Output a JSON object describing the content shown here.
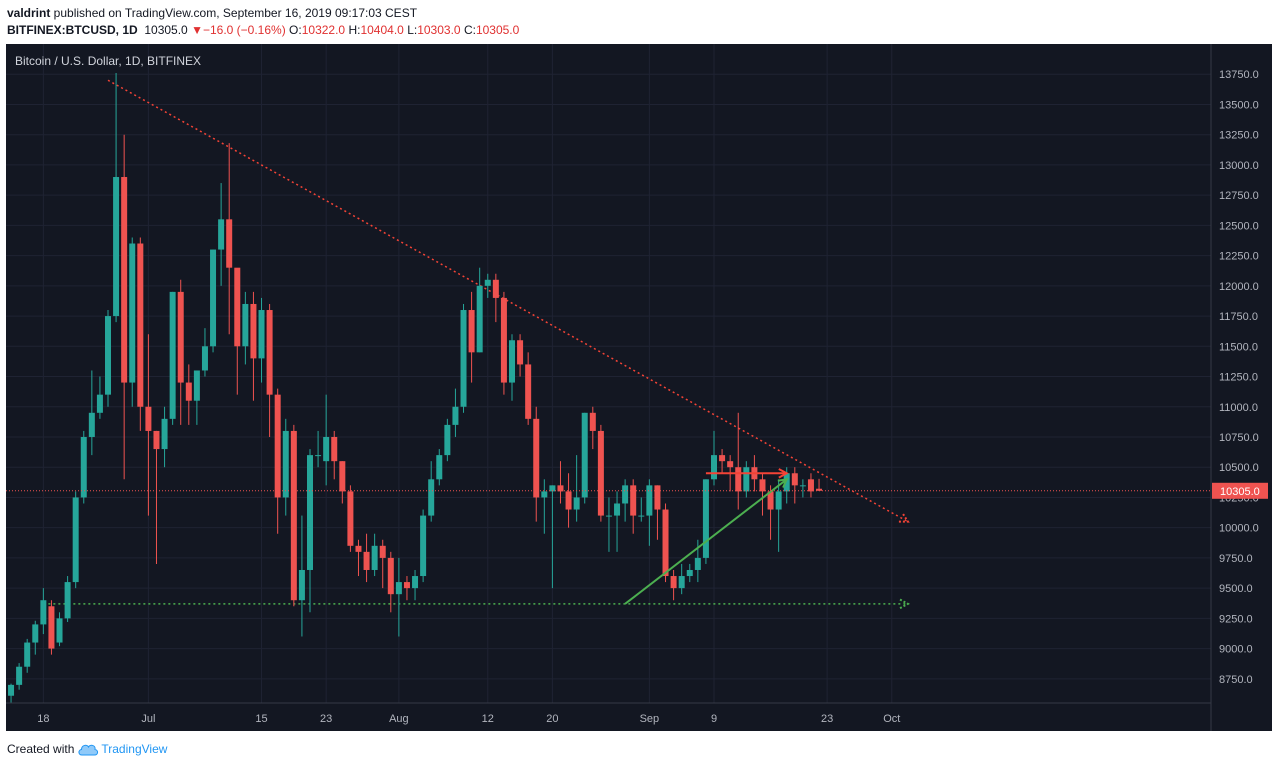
{
  "header": {
    "author": "valdrint",
    "published_text": " published on TradingView.com, September 16, 2019 09:17:03 CEST",
    "symbol": "BITFINEX:BTCUSD, 1D",
    "last": "10305.0",
    "change_arrow": "▼",
    "change": "−16.0 (−0.16%)",
    "o_label": "O:",
    "o_val": "10322.0",
    "h_label": "H:",
    "h_val": "10404.0",
    "l_label": "L:",
    "l_val": "10303.0",
    "c_label": "C:",
    "c_val": "10305.0"
  },
  "footer": {
    "created_with": "Created with",
    "brand": "TradingView",
    "icon": "tradingview-cloud-icon"
  },
  "chart_data": {
    "type": "candlestick",
    "title": "Bitcoin / U.S. Dollar, 1D, BITFINEX",
    "background": "#131722",
    "up_color": "#26a69a",
    "down_color": "#ef5350",
    "last_price": 10305.0,
    "last_price_label": "10305.0",
    "ylim": [
      8550,
      14000
    ],
    "y_ticks": [
      8750,
      9000,
      9250,
      9500,
      9750,
      10000,
      10250,
      10500,
      10750,
      11000,
      11250,
      11500,
      11750,
      12000,
      12250,
      12500,
      12750,
      13000,
      13250,
      13500,
      13750
    ],
    "y_tick_labels": [
      "8750.0",
      "9000.0",
      "9250.0",
      "9500.0",
      "9750.0",
      "10000.0",
      "10250.0",
      "10500.0",
      "10750.0",
      "11000.0",
      "11250.0",
      "11500.0",
      "11750.0",
      "12000.0",
      "12250.0",
      "12500.0",
      "12750.0",
      "13000.0",
      "13250.0",
      "13500.0",
      "13750.0"
    ],
    "x_start": "2019-06-14",
    "x_ticks": [
      {
        "date": "2019-06-18",
        "label": "18"
      },
      {
        "date": "2019-07-01",
        "label": "Jul"
      },
      {
        "date": "2019-07-15",
        "label": "15"
      },
      {
        "date": "2019-07-23",
        "label": "23"
      },
      {
        "date": "2019-08-01",
        "label": "Aug"
      },
      {
        "date": "2019-08-12",
        "label": "12"
      },
      {
        "date": "2019-08-20",
        "label": "20"
      },
      {
        "date": "2019-09-01",
        "label": "Sep"
      },
      {
        "date": "2019-09-09",
        "label": "9"
      },
      {
        "date": "2019-09-23",
        "label": "23"
      },
      {
        "date": "2019-10-01",
        "label": "Oct"
      }
    ],
    "candles": [
      [
        8610,
        8700,
        8550,
        8710
      ],
      [
        8700,
        8850,
        8660,
        8880
      ],
      [
        8850,
        9050,
        8800,
        9080
      ],
      [
        9050,
        9200,
        8950,
        9230
      ],
      [
        9200,
        9400,
        9120,
        9500
      ],
      [
        9350,
        9000,
        8950,
        9400
      ],
      [
        9050,
        9250,
        9020,
        9300
      ],
      [
        9250,
        9550,
        9220,
        9600
      ],
      [
        9550,
        10250,
        9500,
        10300
      ],
      [
        10250,
        10750,
        10200,
        10800
      ],
      [
        10750,
        10950,
        10600,
        11300
      ],
      [
        10950,
        11100,
        10900,
        11250
      ],
      [
        11100,
        11750,
        11000,
        11800
      ],
      [
        11750,
        12900,
        11700,
        13760
      ],
      [
        12900,
        11200,
        10400,
        13250
      ],
      [
        11200,
        12350,
        11000,
        12400
      ],
      [
        12350,
        11000,
        10800,
        12400
      ],
      [
        11000,
        10800,
        10100,
        11600
      ],
      [
        10800,
        10650,
        9700,
        10800
      ],
      [
        10650,
        10900,
        10500,
        11000
      ],
      [
        10900,
        11950,
        10850,
        11950
      ],
      [
        11950,
        11200,
        10850,
        12050
      ],
      [
        11200,
        11050,
        10850,
        11350
      ],
      [
        11050,
        11300,
        10850,
        11300
      ],
      [
        11300,
        11500,
        11250,
        11650
      ],
      [
        11500,
        12300,
        11450,
        12300
      ],
      [
        12300,
        12550,
        12000,
        12850
      ],
      [
        12550,
        12150,
        11600,
        13180
      ],
      [
        12150,
        11500,
        11100,
        12100
      ],
      [
        11500,
        11850,
        11350,
        11950
      ],
      [
        11850,
        11400,
        11050,
        11950
      ],
      [
        11400,
        11800,
        11200,
        11900
      ],
      [
        11800,
        11100,
        10750,
        11850
      ],
      [
        11100,
        10250,
        9950,
        11150
      ],
      [
        10250,
        10800,
        10100,
        10900
      ],
      [
        10800,
        9400,
        9350,
        10850
      ],
      [
        9400,
        9650,
        9100,
        10100
      ],
      [
        9650,
        10600,
        9300,
        10650
      ],
      [
        10600,
        10600,
        10500,
        10800
      ],
      [
        10550,
        10750,
        10350,
        11100
      ],
      [
        10750,
        10550,
        10400,
        10800
      ],
      [
        10550,
        10300,
        10200,
        10550
      ],
      [
        10300,
        9850,
        9800,
        10350
      ],
      [
        9850,
        9800,
        9600,
        9900
      ],
      [
        9800,
        9650,
        9550,
        9950
      ],
      [
        9650,
        9850,
        9600,
        9950
      ],
      [
        9850,
        9750,
        9500,
        9900
      ],
      [
        9750,
        9450,
        9300,
        9800
      ],
      [
        9450,
        9550,
        9100,
        9750
      ],
      [
        9550,
        9500,
        9400,
        9600
      ],
      [
        9500,
        9600,
        9400,
        9650
      ],
      [
        9600,
        10100,
        9550,
        10150
      ],
      [
        10100,
        10400,
        10050,
        10550
      ],
      [
        10400,
        10600,
        10350,
        10650
      ],
      [
        10600,
        10850,
        10550,
        10900
      ],
      [
        10850,
        11000,
        10750,
        11150
      ],
      [
        11000,
        11800,
        10950,
        11850
      ],
      [
        11800,
        11450,
        11200,
        11950
      ],
      [
        11450,
        12000,
        11450,
        12150
      ],
      [
        12000,
        12050,
        11900,
        12100
      ],
      [
        12050,
        11900,
        11700,
        12100
      ],
      [
        11900,
        11200,
        11100,
        11950
      ],
      [
        11200,
        11550,
        11050,
        11600
      ],
      [
        11550,
        11350,
        11250,
        11600
      ],
      [
        11350,
        10900,
        10850,
        11450
      ],
      [
        10900,
        10250,
        10050,
        11000
      ],
      [
        10250,
        10300,
        9950,
        10400
      ],
      [
        10300,
        10350,
        9500,
        10350
      ],
      [
        10350,
        10300,
        10200,
        10550
      ],
      [
        10300,
        10150,
        10000,
        10450
      ],
      [
        10150,
        10250,
        10050,
        10600
      ],
      [
        10250,
        10950,
        10200,
        10950
      ],
      [
        10950,
        10800,
        10650,
        11000
      ],
      [
        10800,
        10100,
        10050,
        10850
      ],
      [
        10100,
        10100,
        9800,
        10250
      ],
      [
        10100,
        10200,
        9800,
        10300
      ],
      [
        10200,
        10350,
        10050,
        10400
      ],
      [
        10350,
        10100,
        9950,
        10400
      ],
      [
        10100,
        10100,
        10050,
        10250
      ],
      [
        10100,
        10350,
        9850,
        10400
      ],
      [
        10350,
        10150,
        9900,
        10350
      ],
      [
        10150,
        9600,
        9550,
        10200
      ],
      [
        9600,
        9500,
        9400,
        9650
      ],
      [
        9500,
        9600,
        9450,
        9700
      ],
      [
        9600,
        9650,
        9550,
        9700
      ],
      [
        9650,
        9750,
        9550,
        9900
      ],
      [
        9750,
        10400,
        9700,
        10400
      ],
      [
        10400,
        10600,
        10350,
        10800
      ],
      [
        10600,
        10550,
        10450,
        10650
      ],
      [
        10550,
        10500,
        10300,
        10600
      ],
      [
        10500,
        10300,
        10150,
        10950
      ],
      [
        10300,
        10500,
        10250,
        10550
      ],
      [
        10500,
        10400,
        10300,
        10600
      ],
      [
        10400,
        10300,
        10100,
        10450
      ],
      [
        10300,
        10150,
        9900,
        10350
      ],
      [
        10150,
        10300,
        9800,
        10400
      ],
      [
        10300,
        10450,
        10200,
        10500
      ],
      [
        10450,
        10350,
        10200,
        10500
      ],
      [
        10350,
        10350,
        10250,
        10400
      ],
      [
        10400,
        10300,
        10250,
        10450
      ],
      [
        10322,
        10305,
        10303,
        10404
      ]
    ],
    "drawings": [
      {
        "type": "trendline",
        "color": "#f44336",
        "style": "dotted",
        "from": [
          "2019-06-26",
          13700
        ],
        "to": [
          "2019-10-03",
          10050
        ],
        "arrow": true
      },
      {
        "type": "trendline",
        "color": "#4caf50",
        "style": "dotted",
        "from": [
          "2019-06-18",
          9370
        ],
        "to": [
          "2019-10-03",
          9370
        ],
        "arrow": true
      },
      {
        "type": "arrow",
        "color": "#4caf50",
        "style": "solid",
        "from": [
          "2019-08-29",
          9370
        ],
        "to": [
          "2019-09-18",
          10400
        ]
      },
      {
        "type": "arrow",
        "color": "#f44336",
        "style": "solid",
        "from": [
          "2019-09-08",
          10450
        ],
        "to": [
          "2019-09-18",
          10450
        ]
      }
    ]
  }
}
